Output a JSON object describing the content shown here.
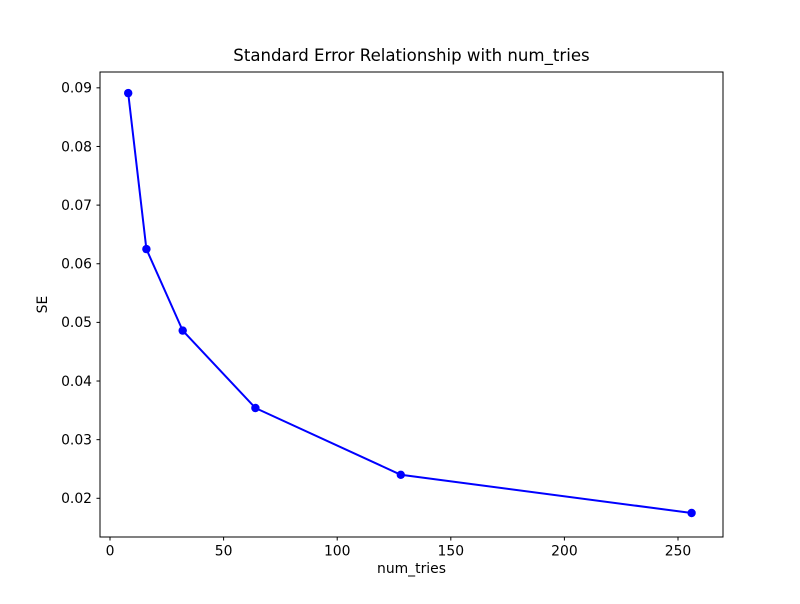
{
  "figure": {
    "background": "#ffffff",
    "axis_color": "#000000",
    "text_color": "#000000"
  },
  "chart_data": {
    "type": "line",
    "title": "Standard Error Relationship with num_tries",
    "xlabel": "num_tries",
    "ylabel": "SE",
    "x": [
      8,
      16,
      32,
      64,
      128,
      256
    ],
    "y": [
      0.0891,
      0.0625,
      0.0486,
      0.0354,
      0.024,
      0.0175
    ],
    "line_color": "#0000ff",
    "marker": "circle",
    "marker_color": "#0000ff",
    "marker_radius": 4.2,
    "line_width": 2,
    "xlim": [
      -4.4,
      269.8
    ],
    "ylim": [
      0.0134,
      0.0927
    ],
    "xticks": [
      0,
      50,
      100,
      150,
      200,
      250
    ],
    "xtick_labels": [
      "0",
      "50",
      "100",
      "150",
      "200",
      "250"
    ],
    "yticks": [
      0.02,
      0.03,
      0.04,
      0.05,
      0.06,
      0.07,
      0.08,
      0.09
    ],
    "ytick_labels": [
      "0.02",
      "0.03",
      "0.04",
      "0.05",
      "0.06",
      "0.07",
      "0.08",
      "0.09"
    ],
    "grid": false,
    "legend_position": "none"
  }
}
